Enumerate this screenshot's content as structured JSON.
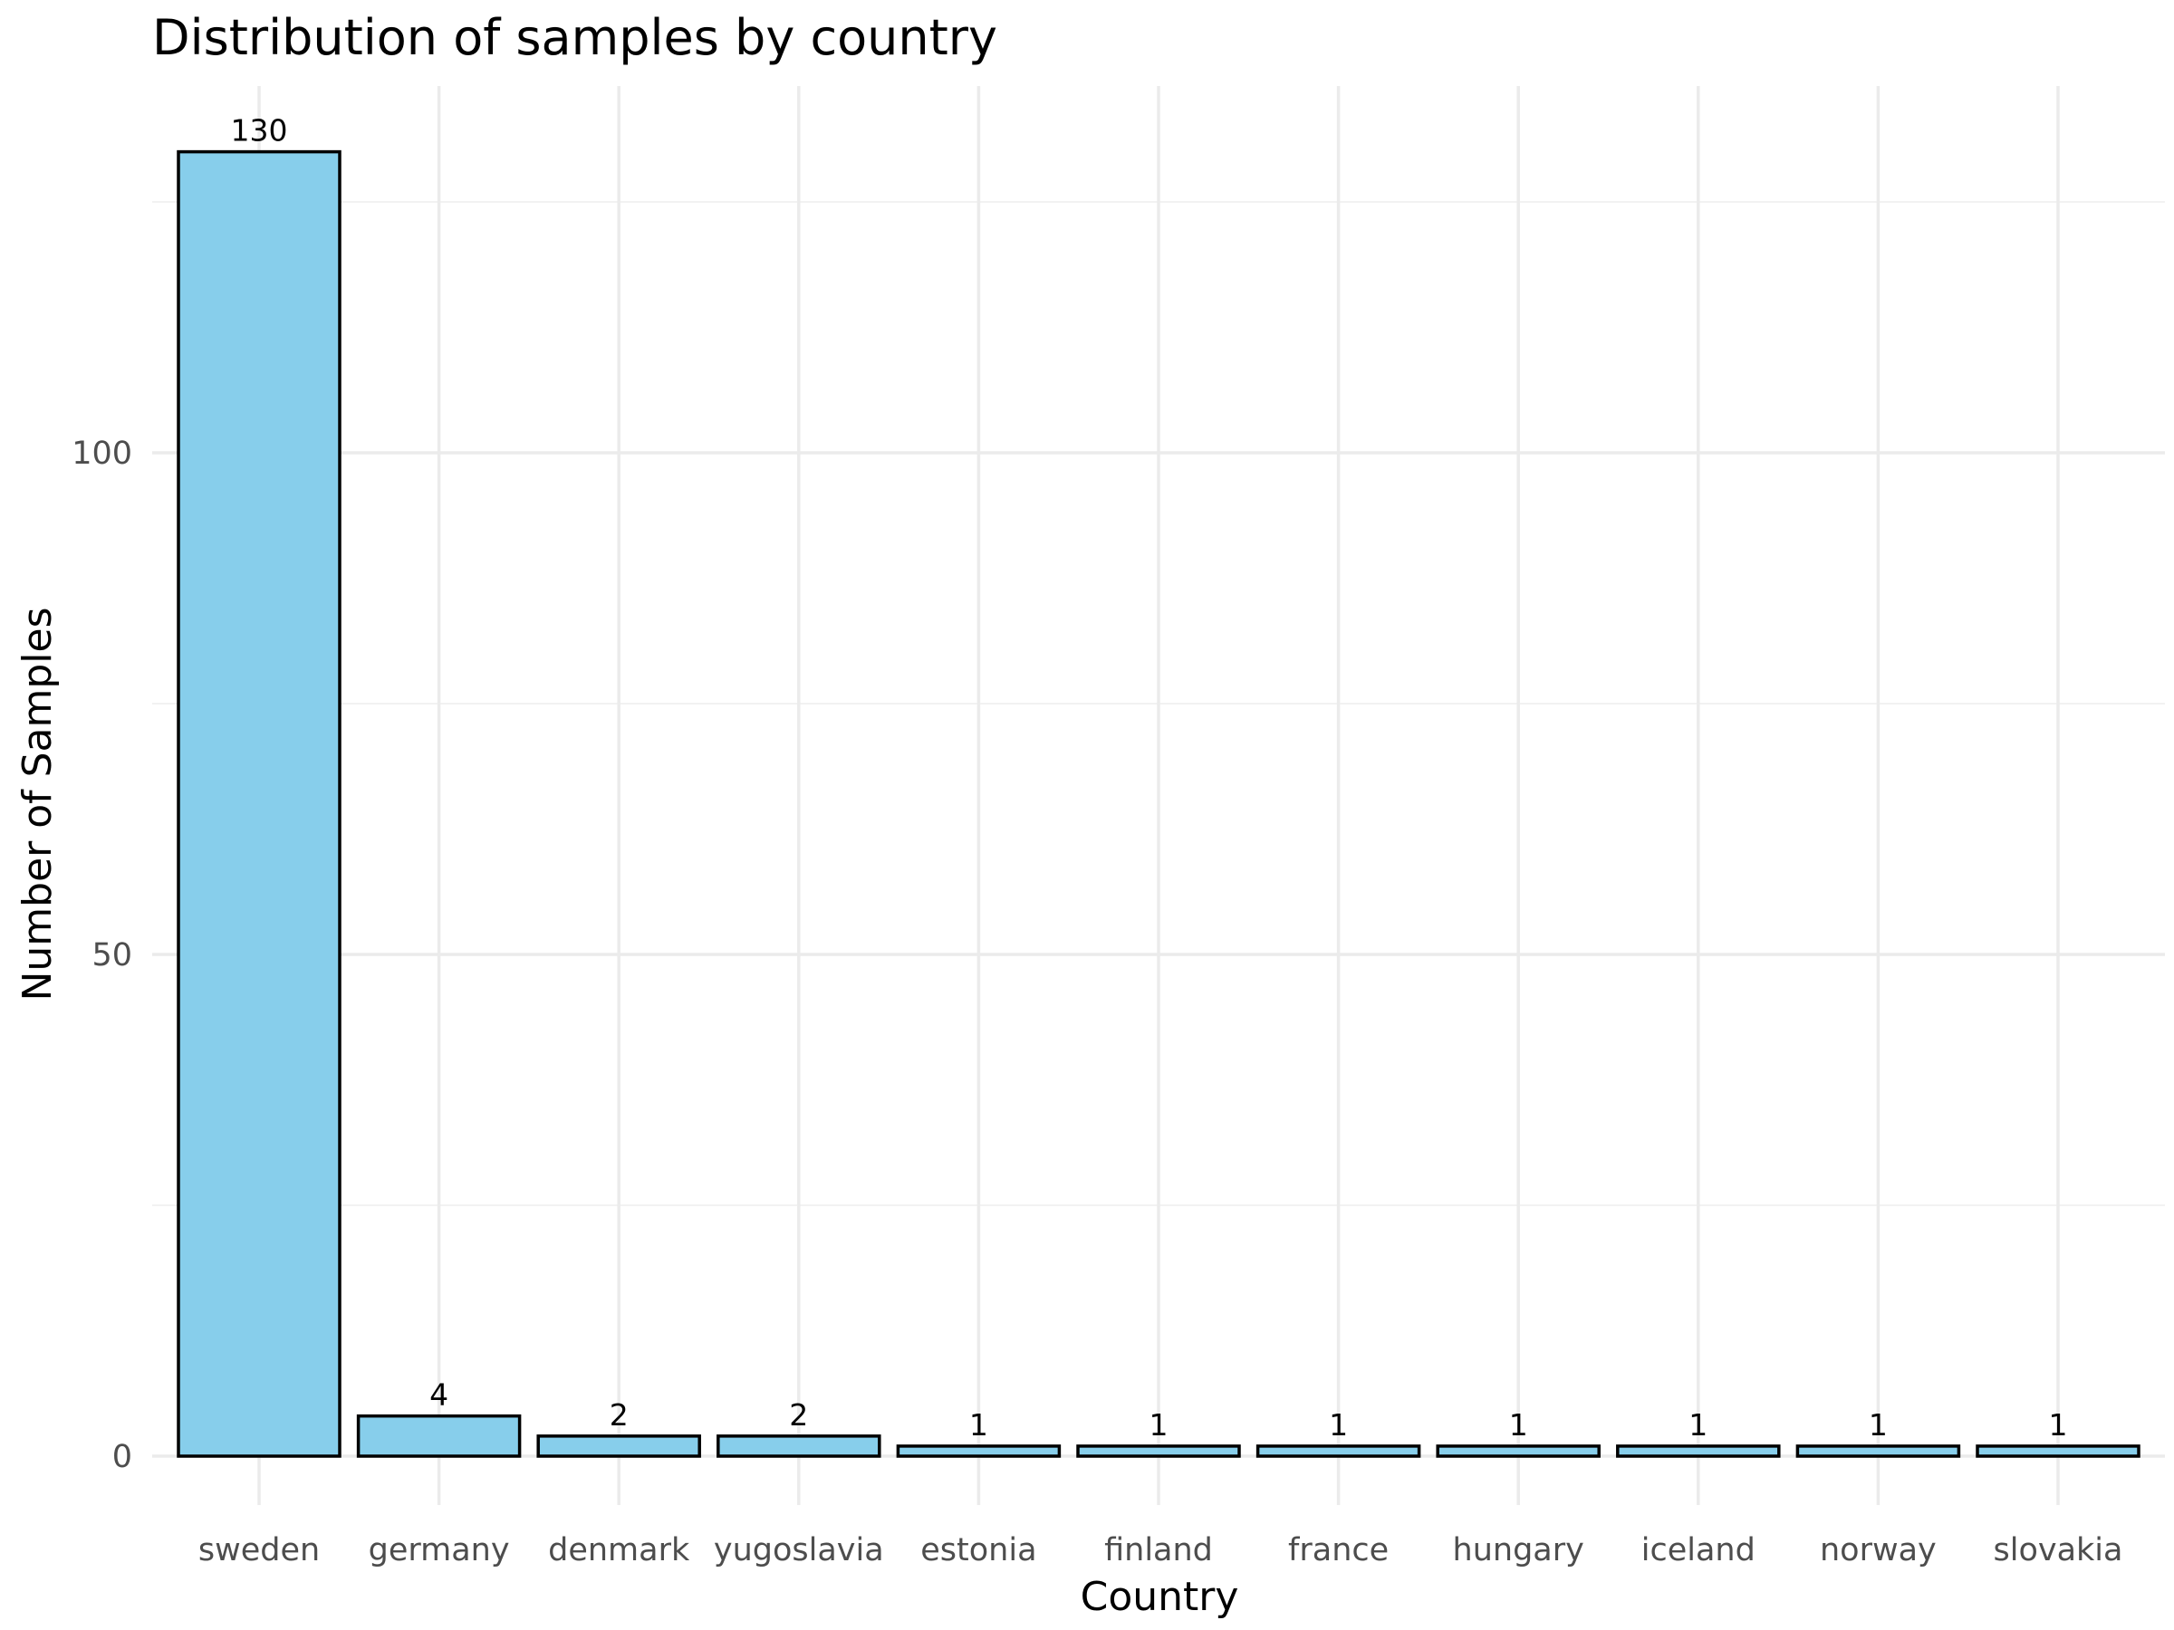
{
  "chart_data": {
    "type": "bar",
    "title": "Distribution of samples by country",
    "xlabel": "Country",
    "ylabel": "Number of Samples",
    "categories": [
      "sweden",
      "germany",
      "denmark",
      "yugoslavia",
      "estonia",
      "finland",
      "france",
      "hungary",
      "iceland",
      "norway",
      "slovakia"
    ],
    "values": [
      130,
      4,
      2,
      2,
      1,
      1,
      1,
      1,
      1,
      1,
      1
    ],
    "data_labels": [
      "130",
      "4",
      "2",
      "2",
      "1",
      "1",
      "1",
      "1",
      "1",
      "1",
      "1"
    ],
    "yticks": [
      0,
      50,
      100
    ],
    "ytick_labels": [
      "0",
      "50",
      "100"
    ],
    "ylim": [
      0,
      136.5
    ],
    "grid": true,
    "legend": "none",
    "bar_fill": "#87ceeb",
    "bar_outline": "#000000",
    "grid_color": "#ebebeb"
  }
}
